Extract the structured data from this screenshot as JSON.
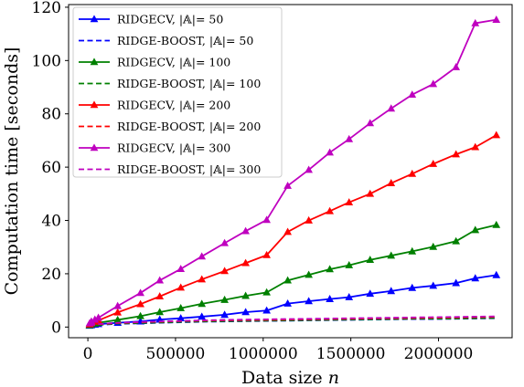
{
  "chart_data": {
    "type": "line",
    "xlabel": "Data size n",
    "ylabel": "Computation time [seconds]",
    "xlim": [
      -110000,
      2420000
    ],
    "ylim": [
      -4,
      121
    ],
    "xticks": [
      0,
      500000,
      1000000,
      1500000,
      2000000
    ],
    "xtick_labels": [
      "0",
      "500000",
      "1000000",
      "1500000",
      "2000000"
    ],
    "yticks": [
      0,
      20,
      40,
      60,
      80,
      100,
      120
    ],
    "ytick_labels": [
      "0",
      "20",
      "40",
      "60",
      "80",
      "100",
      "120"
    ],
    "grid": false,
    "legend_position": "top-left",
    "x": [
      10000,
      20000,
      40000,
      60000,
      170000,
      300000,
      410000,
      530000,
      650000,
      780000,
      900000,
      1020000,
      1140000,
      1260000,
      1380000,
      1490000,
      1610000,
      1730000,
      1850000,
      1970000,
      2100000,
      2210000,
      2330000
    ],
    "series": [
      {
        "name": "RIDGECV, |𝔸|= 50",
        "color": "#0000ff",
        "style": "solid",
        "marker": "triangle",
        "values": [
          0.5,
          0.7,
          0.9,
          1.1,
          1.6,
          2.1,
          2.8,
          3.3,
          3.9,
          4.6,
          5.6,
          6.2,
          8.8,
          9.7,
          10.5,
          11.2,
          12.5,
          13.5,
          14.7,
          15.5,
          16.5,
          18.3,
          19.5
        ]
      },
      {
        "name": "RIDGE-BOOST, |𝔸|= 50",
        "color": "#0000ff",
        "style": "dashed",
        "marker": "none",
        "values": [
          0.3,
          0.5,
          0.7,
          0.8,
          1.2,
          1.4,
          1.6,
          1.8,
          2.0,
          2.1,
          2.2,
          2.3,
          2.4,
          2.5,
          2.6,
          2.7,
          2.8,
          2.9,
          3.0,
          3.0,
          3.1,
          3.2,
          3.3
        ]
      },
      {
        "name": "RIDGECV, |𝔸|= 100",
        "color": "#008000",
        "style": "solid",
        "marker": "triangle",
        "values": [
          0.7,
          1.0,
          1.3,
          1.6,
          2.7,
          4.1,
          5.6,
          7.1,
          8.7,
          10.2,
          11.7,
          13.0,
          17.5,
          19.6,
          21.7,
          23.2,
          25.2,
          26.8,
          28.4,
          30.1,
          32.2,
          36.4,
          38.3
        ]
      },
      {
        "name": "RIDGE-BOOST, |𝔸|= 100",
        "color": "#008000",
        "style": "dashed",
        "marker": "none",
        "values": [
          0.3,
          0.5,
          0.7,
          0.9,
          1.3,
          1.5,
          1.7,
          1.9,
          2.1,
          2.2,
          2.3,
          2.4,
          2.5,
          2.6,
          2.7,
          2.8,
          2.9,
          3.0,
          3.1,
          3.1,
          3.2,
          3.3,
          3.4
        ]
      },
      {
        "name": "RIDGECV, |𝔸|= 200",
        "color": "#ff0000",
        "style": "solid",
        "marker": "triangle",
        "values": [
          1.0,
          1.5,
          2.0,
          2.5,
          5.5,
          8.6,
          11.5,
          14.8,
          17.9,
          21.0,
          24.0,
          27.0,
          35.7,
          40.0,
          43.5,
          46.8,
          50.0,
          54.0,
          57.5,
          61.2,
          64.8,
          67.5,
          72.0
        ]
      },
      {
        "name": "RIDGE-BOOST, |𝔸|= 200",
        "color": "#ff0000",
        "style": "dashed",
        "marker": "none",
        "values": [
          0.4,
          0.6,
          0.8,
          1.0,
          1.5,
          1.8,
          2.0,
          2.2,
          2.4,
          2.5,
          2.6,
          2.7,
          2.8,
          2.9,
          3.0,
          3.1,
          3.2,
          3.3,
          3.4,
          3.5,
          3.6,
          3.7,
          3.8
        ]
      },
      {
        "name": "RIDGECV, |𝔸|= 300",
        "color": "#bf00bf",
        "style": "solid",
        "marker": "triangle",
        "values": [
          1.4,
          2.1,
          2.8,
          3.5,
          7.9,
          12.8,
          17.5,
          21.8,
          26.5,
          31.5,
          36.0,
          40.2,
          53.0,
          59.0,
          65.5,
          70.5,
          76.5,
          82.0,
          87.2,
          91.2,
          97.5,
          114.0,
          115.3
        ]
      },
      {
        "name": "RIDGE-BOOST, |𝔸|= 300",
        "color": "#bf00bf",
        "style": "dashed",
        "marker": "none",
        "values": [
          0.5,
          0.7,
          0.9,
          1.1,
          1.6,
          1.9,
          2.1,
          2.3,
          2.5,
          2.7,
          2.8,
          2.9,
          3.0,
          3.1,
          3.2,
          3.3,
          3.4,
          3.5,
          3.6,
          3.7,
          3.8,
          3.9,
          4.0
        ]
      }
    ]
  }
}
